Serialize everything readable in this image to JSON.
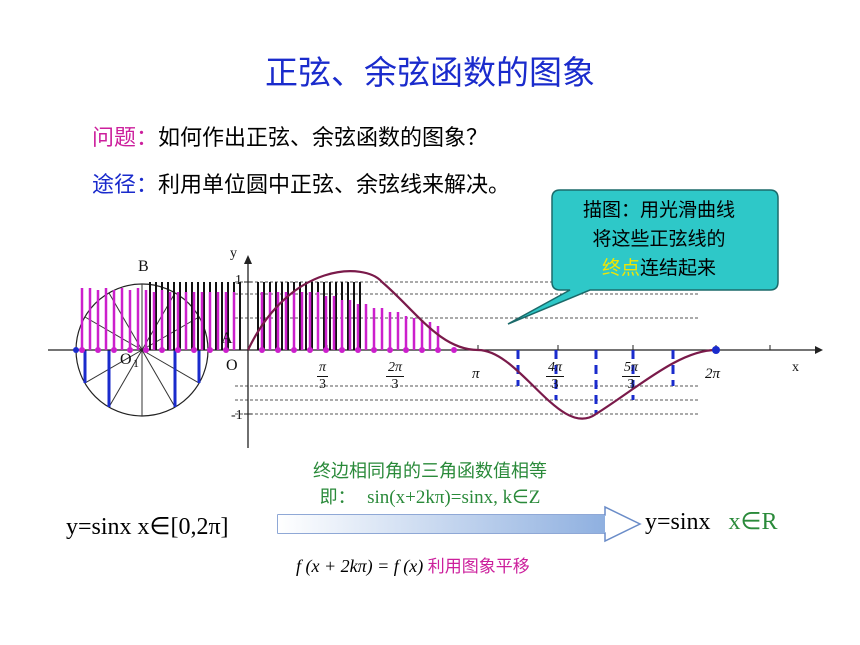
{
  "title": "正弦、余弦函数的图象",
  "question": {
    "label": "问题：",
    "text": "如何作出正弦、余弦函数的图象？"
  },
  "approach": {
    "label": "途径：",
    "text": "利用单位圆中正弦、余弦线来解决。"
  },
  "callout": {
    "line1": "描图：用光滑曲线",
    "line2": "将这些正弦线的",
    "highlight": "终点",
    "line3_rest": "连结起来"
  },
  "graph": {
    "y_label": "y",
    "x_label": "x",
    "point_B": "B",
    "point_A": "A",
    "origin_left": "O",
    "origin_small": "1",
    "origin_main": "O",
    "y_tick_top": "1",
    "y_tick_bottom": "-1",
    "ticks": [
      {
        "num": "π",
        "den": "3"
      },
      {
        "num": "2π",
        "den": "3"
      },
      {
        "single": "π"
      },
      {
        "num": "4π",
        "den": "3"
      },
      {
        "num": "5π",
        "den": "3"
      },
      {
        "single": "2π"
      }
    ]
  },
  "bottom": {
    "green_line1": "终边相同角的三角函数值相等",
    "green_line2_label": "即：",
    "green_line2_eq": "sin(x+2kπ)=sinx,  k∈Z",
    "left_formula": "y=sinx   x∈[0,2π]",
    "right_formula_main": "y=sinx",
    "right_formula_domain": "x∈R",
    "shift_formula": "f (x + 2kπ) = f (x)",
    "shift_text": "利用图象平移"
  },
  "colors": {
    "title": "#1a2bcc",
    "question_label": "#cc1f9c",
    "approach_label": "#1a2bcc",
    "curve": "#7a1a4a",
    "callout_fill": "#2ec8c8",
    "highlight": "#f2e600",
    "sine_lines_blue": "#1a2bcc",
    "magenta": "#cc1fcc",
    "green": "#2a8a3a"
  }
}
